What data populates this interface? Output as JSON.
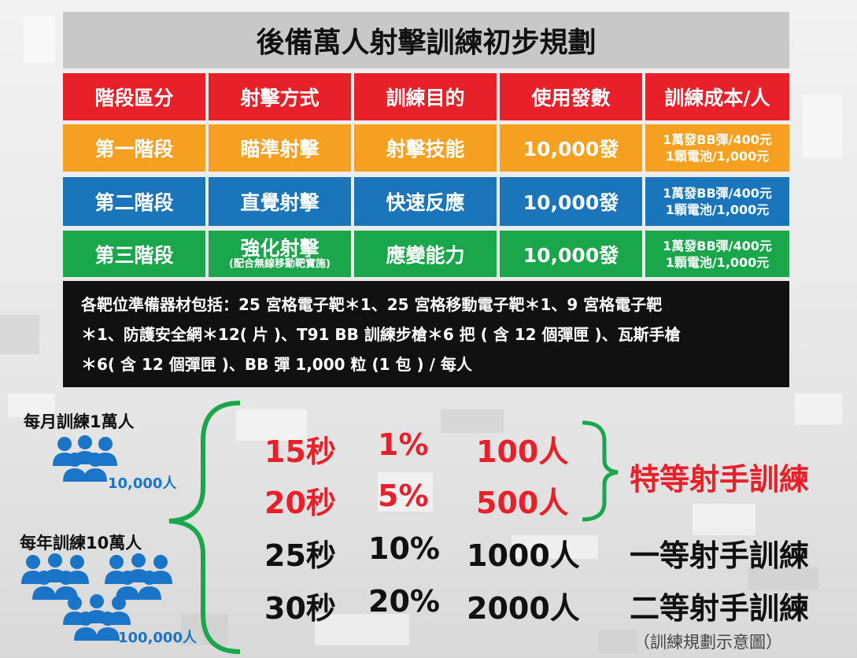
{
  "title": "後備萬人射擊訓練初步規劃",
  "table": {
    "header": [
      "階段區分",
      "射擊方式",
      "訓練目的",
      "使用發數",
      "訓練成本/人"
    ],
    "rows": [
      [
        "第一階段",
        "瞄準射擊",
        "射擊技能",
        "10,000發",
        [
          "1萬發BB彈/400元",
          "1顆電池/1,000元"
        ]
      ],
      [
        "第二階段",
        "直覺射擊",
        "快速反應",
        "10,000發",
        [
          "1萬發BB彈/400元",
          "1顆電池/1,000元"
        ]
      ],
      [
        "第三階段",
        "強化射擊",
        "應變能力",
        "10,000發",
        [
          "1萬發BB彈/400元",
          "1顆電池/1,000元"
        ]
      ]
    ],
    "method_note": "(配合無線移動靶實施)",
    "equipment": [
      "各靶位準備器材包括：25 宮格電子靶＊1、25 宮格移動電子靶＊1、9 宮格電子靶",
      "＊1、防護安全網＊12( 片 )、T91 BB 訓練步槍＊6 把 ( 含 12 個彈匣 )、瓦斯手槍",
      "＊6( 含 12 個彈匣 )、BB 彈 1,000 粒 (1 包 ) / 每人"
    ]
  },
  "plan": {
    "monthly": {
      "label": "每月訓練1萬人",
      "count": "10,000人"
    },
    "yearly": {
      "label": "每年訓練10萬人",
      "count": "100,000人"
    },
    "tiers": [
      {
        "time": "15秒",
        "percent": "1%",
        "people": "100人"
      },
      {
        "time": "20秒",
        "percent": "5%",
        "people": "500人"
      },
      {
        "time": "25秒",
        "percent": "10%",
        "people": "1000人"
      },
      {
        "time": "30秒",
        "percent": "20%",
        "people": "2000人"
      }
    ],
    "elite": "特等射手訓練",
    "first": "一等射手訓練",
    "second": "二等射手訓練",
    "caption": "（訓練規劃示意圖）"
  }
}
